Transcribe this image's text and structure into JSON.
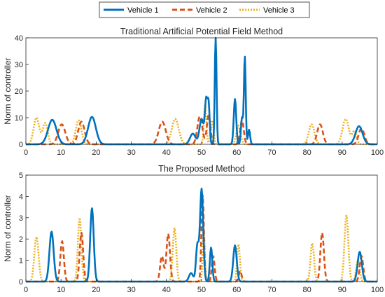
{
  "legend": {
    "placement": "top-center",
    "entries": [
      {
        "name": "Vehicle 1",
        "color": "#0072BD",
        "style": "solid"
      },
      {
        "name": "Vehicle 2",
        "color": "#D95319",
        "style": "dashed"
      },
      {
        "name": "Vehicle 3",
        "color": "#EDB120",
        "style": "dotted"
      }
    ]
  },
  "chart_data": [
    {
      "type": "line",
      "title": "Traditional Artificial Potential Field Method",
      "xlabel": "",
      "ylabel": "Norm of controller",
      "xlim": [
        0,
        100
      ],
      "ylim": [
        0,
        40
      ],
      "xticks": [
        "0",
        "10",
        "20",
        "30",
        "40",
        "50",
        "60",
        "70",
        "80",
        "90",
        "100"
      ],
      "yticks": [
        "0",
        "10",
        "20",
        "30",
        "40"
      ],
      "grid": false,
      "series": [
        {
          "name": "Vehicle 1",
          "peaks": [
            [
              7.5,
              9.2,
              1.2
            ],
            [
              18.8,
              10.3,
              1.1
            ],
            [
              47.5,
              4,
              0.8
            ],
            [
              50,
              9.5,
              0.6
            ],
            [
              51.3,
              16,
              0.35
            ],
            [
              52,
              14.5,
              0.3
            ],
            [
              54,
              41,
              0.25
            ],
            [
              59.5,
              17,
              0.35
            ],
            [
              61.5,
              10,
              0.3
            ],
            [
              62.3,
              33,
              0.25
            ],
            [
              63.5,
              5.5,
              0.3
            ],
            [
              94.8,
              6.8,
              1.0
            ]
          ]
        },
        {
          "name": "Vehicle 2",
          "peaks": [
            [
              10.2,
              7.5,
              1.0
            ],
            [
              15.8,
              8.5,
              0.9
            ],
            [
              38.8,
              8.5,
              1.0
            ],
            [
              49.5,
              10.5,
              0.7
            ],
            [
              52,
              11,
              0.5
            ],
            [
              61.5,
              9,
              0.5
            ],
            [
              83.7,
              7.5,
              0.8
            ],
            [
              95.5,
              6,
              0.8
            ]
          ]
        },
        {
          "name": "Vehicle 3",
          "peaks": [
            [
              3,
              10,
              0.8
            ],
            [
              5.5,
              8,
              0.7
            ],
            [
              15,
              9,
              0.8
            ],
            [
              42.5,
              9.5,
              1.0
            ],
            [
              51,
              15,
              0.35
            ],
            [
              53,
              9,
              0.4
            ],
            [
              60.5,
              7,
              0.6
            ],
            [
              81.3,
              7.5,
              0.8
            ],
            [
              91,
              9.5,
              0.9
            ],
            [
              93.5,
              5,
              0.6
            ]
          ]
        }
      ]
    },
    {
      "type": "line",
      "title": "The Proposed Method",
      "xlabel": "",
      "ylabel": "Norm of controller",
      "xlim": [
        0,
        100
      ],
      "ylim": [
        0,
        5
      ],
      "xticks": [
        "0",
        "10",
        "20",
        "30",
        "40",
        "50",
        "60",
        "70",
        "80",
        "90",
        "100"
      ],
      "yticks": [
        "0",
        "1",
        "2",
        "3",
        "4",
        "5"
      ],
      "grid": false,
      "series": [
        {
          "name": "Vehicle 1",
          "peaks": [
            [
              7.3,
              2.35,
              0.6
            ],
            [
              18.8,
              3.45,
              0.5
            ],
            [
              47,
              0.4,
              0.6
            ],
            [
              48.8,
              1.7,
              0.4
            ],
            [
              50,
              4.35,
              0.45
            ],
            [
              52.7,
              1.6,
              0.35
            ],
            [
              59.5,
              1.7,
              0.5
            ],
            [
              95,
              1.4,
              0.6
            ]
          ]
        },
        {
          "name": "Vehicle 2",
          "peaks": [
            [
              10.3,
              1.9,
              0.5
            ],
            [
              15.8,
              2.3,
              0.5
            ],
            [
              38.7,
              1.2,
              0.5
            ],
            [
              40.5,
              2.25,
              0.5
            ],
            [
              50.3,
              4.05,
              0.35
            ],
            [
              53.3,
              1.2,
              0.4
            ],
            [
              61,
              0.5,
              0.4
            ],
            [
              84.3,
              2.3,
              0.5
            ],
            [
              95.5,
              1.2,
              0.5
            ]
          ]
        },
        {
          "name": "Vehicle 3",
          "peaks": [
            [
              3,
              2.1,
              0.6
            ],
            [
              15.3,
              3.0,
              0.5
            ],
            [
              42.3,
              2.5,
              0.5
            ],
            [
              50.6,
              2.5,
              0.3
            ],
            [
              60.5,
              1.75,
              0.4
            ],
            [
              81.5,
              1.8,
              0.5
            ],
            [
              91.2,
              3.1,
              0.55
            ],
            [
              94.5,
              1.0,
              0.5
            ]
          ]
        }
      ]
    }
  ]
}
